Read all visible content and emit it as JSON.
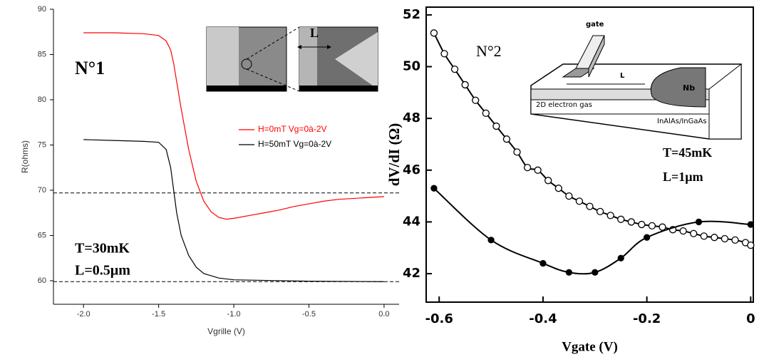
{
  "chart_data": [
    {
      "type": "line",
      "x_label": "Vgrille (V)",
      "y_label": "R(ohms)",
      "xlim": [
        -2.2,
        0.1
      ],
      "ylim": [
        57.4,
        90
      ],
      "xticks": [
        {
          "value": -2,
          "label": "-2.0"
        },
        -1.5,
        {
          "value": -1,
          "label": "-1.0"
        },
        -0.5,
        {
          "value": 0,
          "label": "0.0"
        }
      ],
      "yticks": [
        60,
        65,
        70,
        75,
        80,
        85,
        90
      ],
      "reference_lines": [
        69.7,
        59.9
      ],
      "annotations": [
        "N°1",
        "T=30mK",
        "L=0.5µm"
      ],
      "inset_labels": [
        "L"
      ],
      "series": [
        {
          "name": "H=0mT Vg=0à-2V",
          "color": "#ff0000",
          "marker": "none",
          "x": [
            -2.0,
            -1.8,
            -1.6,
            -1.5,
            -1.45,
            -1.42,
            -1.4,
            -1.38,
            -1.35,
            -1.3,
            -1.25,
            -1.2,
            -1.15,
            -1.1,
            -1.05,
            -1.0,
            -0.9,
            -0.8,
            -0.7,
            -0.6,
            -0.5,
            -0.4,
            -0.3,
            -0.2,
            -0.1,
            0.0
          ],
          "values": [
            87.4,
            87.4,
            87.3,
            87.1,
            86.5,
            85.5,
            84,
            82,
            79,
            74.5,
            71,
            68.8,
            67.6,
            67.0,
            66.8,
            66.9,
            67.2,
            67.5,
            67.8,
            68.2,
            68.5,
            68.8,
            69.0,
            69.1,
            69.2,
            69.3
          ]
        },
        {
          "name": "H=50mT Vg=0à-2V",
          "color": "#000000",
          "marker": "none",
          "x": [
            -2.0,
            -1.8,
            -1.6,
            -1.5,
            -1.45,
            -1.42,
            -1.4,
            -1.38,
            -1.35,
            -1.3,
            -1.25,
            -1.2,
            -1.1,
            -1.0,
            -0.5,
            0.0
          ],
          "values": [
            75.6,
            75.5,
            75.4,
            75.3,
            74.5,
            72.5,
            70,
            67.5,
            65,
            62.8,
            61.5,
            60.8,
            60.3,
            60.1,
            59.95,
            59.9
          ]
        }
      ]
    },
    {
      "type": "line",
      "x_label": "Vgate (V)",
      "y_label": "dV/dI (Ω)",
      "xlim": [
        -0.625,
        0.005
      ],
      "ylim": [
        40.9,
        52.3
      ],
      "xticks": [
        -0.6,
        -0.4,
        -0.2,
        0
      ],
      "yticks": [
        42,
        44,
        46,
        48,
        50,
        52
      ],
      "smooth": true,
      "annotations": [
        "N°2",
        "T=45mK",
        "L=1µm"
      ],
      "inset_labels": [
        "gate",
        "L",
        "Nb",
        "2D electron gas",
        "InAlAs/InGaAs"
      ],
      "series": [
        {
          "color": "#000000",
          "marker": "open",
          "x": [
            -0.61,
            -0.59,
            -0.57,
            -0.55,
            -0.53,
            -0.51,
            -0.49,
            -0.47,
            -0.45,
            -0.43,
            -0.41,
            -0.39,
            -0.37,
            -0.35,
            -0.33,
            -0.31,
            -0.29,
            -0.27,
            -0.25,
            -0.23,
            -0.21,
            -0.19,
            -0.17,
            -0.15,
            -0.13,
            -0.11,
            -0.09,
            -0.07,
            -0.05,
            -0.03,
            -0.01,
            0.0
          ],
          "values": [
            51.3,
            50.5,
            49.9,
            49.3,
            48.7,
            48.2,
            47.7,
            47.2,
            46.7,
            46.1,
            46.0,
            45.6,
            45.3,
            45.0,
            44.8,
            44.6,
            44.4,
            44.25,
            44.1,
            44.0,
            43.9,
            43.85,
            43.8,
            43.7,
            43.65,
            43.55,
            43.45,
            43.4,
            43.35,
            43.3,
            43.2,
            43.1
          ]
        },
        {
          "color": "#000000",
          "marker": "filled",
          "x": [
            -0.61,
            -0.5,
            -0.4,
            -0.35,
            -0.3,
            -0.25,
            -0.2,
            -0.1,
            0.0
          ],
          "values": [
            45.3,
            43.3,
            42.4,
            42.05,
            42.05,
            42.6,
            43.4,
            44.0,
            43.9
          ]
        }
      ]
    }
  ]
}
